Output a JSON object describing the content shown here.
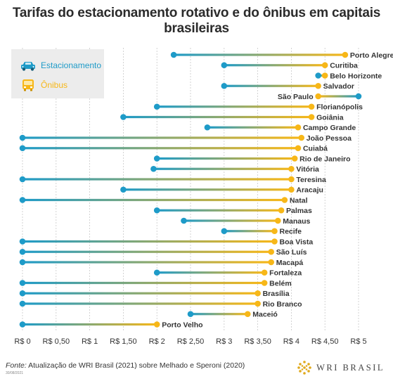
{
  "title": "Tarifas do estacionamento rotativo e do ônibus em capitais brasileiras",
  "legend": {
    "items": [
      {
        "label": "Estacionamento",
        "color": "#1e9bc8",
        "icon": "car-icon"
      },
      {
        "label": "Ônibus",
        "color": "#f7b718",
        "icon": "bus-icon"
      }
    ]
  },
  "footer": {
    "source_prefix": "Fonte:",
    "source_text": " Atualização de WRI Brasil (2021) sobre Melhado e Speroni (2020)",
    "date": "30/08/2021",
    "brand": "WRI BRASIL"
  },
  "chart_data": {
    "type": "dumbbell",
    "title": "Tarifas do estacionamento rotativo e do ônibus em capitais brasileiras",
    "xlim": [
      0,
      5
    ],
    "x_ticks": [
      0,
      0.5,
      1,
      1.5,
      2,
      2.5,
      3,
      3.5,
      4,
      4.5,
      5
    ],
    "x_tick_labels": [
      "R$ 0",
      "R$ 0,50",
      "R$ 1",
      "R$ 1,50",
      "R$ 2",
      "R$ 2,50",
      "R$ 3",
      "R$ 3,50",
      "R$ 4",
      "R$ 4,50",
      "R$ 5"
    ],
    "grid": true,
    "series": [
      {
        "name": "Estacionamento",
        "color": "#1e9bc8"
      },
      {
        "name": "Ônibus",
        "color": "#f7b718"
      }
    ],
    "rows": [
      {
        "city": "Porto Alegre",
        "estacionamento": 2.25,
        "onibus": 4.8
      },
      {
        "city": "Curitiba",
        "estacionamento": 3.0,
        "onibus": 4.5
      },
      {
        "city": "Belo Horizonte",
        "estacionamento": 4.4,
        "onibus": 4.5
      },
      {
        "city": "Salvador",
        "estacionamento": 3.0,
        "onibus": 4.4
      },
      {
        "city": "São Paulo",
        "estacionamento": 5.0,
        "onibus": 4.4
      },
      {
        "city": "Florianópolis",
        "estacionamento": 2.0,
        "onibus": 4.3
      },
      {
        "city": "Goiânia",
        "estacionamento": 1.5,
        "onibus": 4.3
      },
      {
        "city": "Campo Grande",
        "estacionamento": 2.75,
        "onibus": 4.1
      },
      {
        "city": "João Pessoa",
        "estacionamento": 0,
        "onibus": 4.15
      },
      {
        "city": "Cuiabá",
        "estacionamento": 0,
        "onibus": 4.1
      },
      {
        "city": "Rio de Janeiro",
        "estacionamento": 2.0,
        "onibus": 4.05
      },
      {
        "city": "Vitória",
        "estacionamento": 1.95,
        "onibus": 4.0
      },
      {
        "city": "Teresina",
        "estacionamento": 0,
        "onibus": 4.0
      },
      {
        "city": "Aracaju",
        "estacionamento": 1.5,
        "onibus": 4.0
      },
      {
        "city": "Natal",
        "estacionamento": 0,
        "onibus": 3.9
      },
      {
        "city": "Palmas",
        "estacionamento": 2.0,
        "onibus": 3.85
      },
      {
        "city": "Manaus",
        "estacionamento": 2.4,
        "onibus": 3.8
      },
      {
        "city": "Recife",
        "estacionamento": 3.0,
        "onibus": 3.75
      },
      {
        "city": "Boa Vista",
        "estacionamento": 0,
        "onibus": 3.75
      },
      {
        "city": "São Luís",
        "estacionamento": 0,
        "onibus": 3.7
      },
      {
        "city": "Macapá",
        "estacionamento": 0,
        "onibus": 3.7
      },
      {
        "city": "Fortaleza",
        "estacionamento": 2.0,
        "onibus": 3.6
      },
      {
        "city": "Belém",
        "estacionamento": 0,
        "onibus": 3.6
      },
      {
        "city": "Brasília",
        "estacionamento": 0,
        "onibus": 3.5
      },
      {
        "city": "Rio Branco",
        "estacionamento": 0,
        "onibus": 3.5
      },
      {
        "city": "Maceió",
        "estacionamento": 2.5,
        "onibus": 3.35
      },
      {
        "city": "Porto Velho",
        "estacionamento": 0,
        "onibus": 2.0
      }
    ]
  }
}
